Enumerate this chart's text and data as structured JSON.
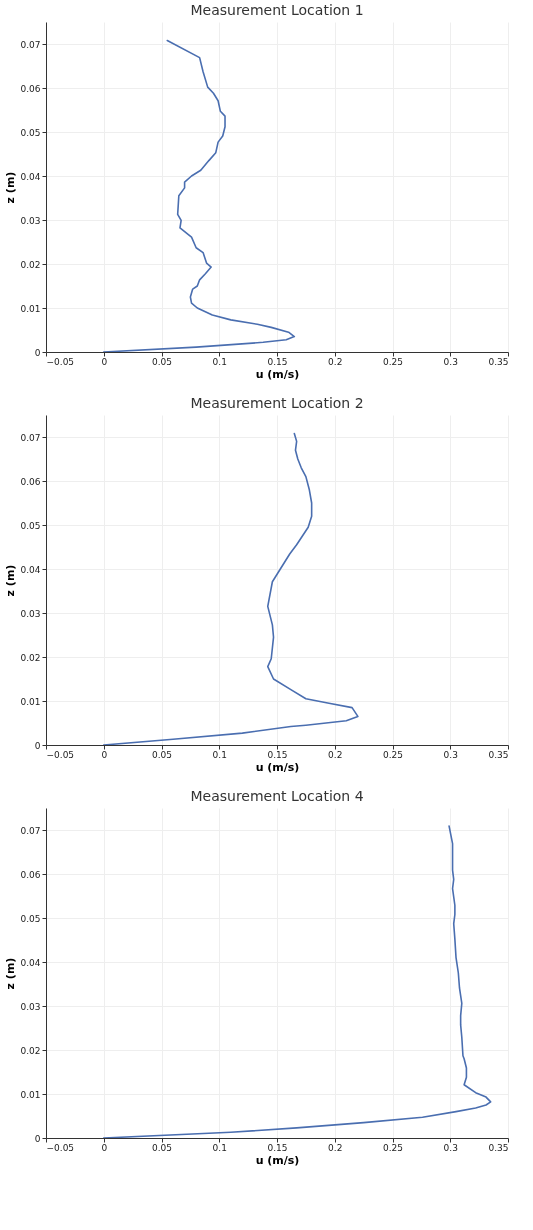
{
  "chart_data": [
    {
      "type": "line",
      "title": "Measurement Location 1",
      "xlabel": "u (m/s)",
      "ylabel": "z (m)",
      "xlim": [
        -0.05,
        0.35
      ],
      "ylim": [
        0,
        0.075
      ],
      "xticks": [
        -0.05,
        0,
        0.05,
        0.1,
        0.15,
        0.2,
        0.25,
        0.3,
        0.35
      ],
      "yticks": [
        0,
        0.01,
        0.02,
        0.03,
        0.04,
        0.05,
        0.06,
        0.07
      ],
      "grid": true,
      "series": [
        {
          "color": "#4a6eb0",
          "x": [
            0,
            0.08,
            0.138,
            0.158,
            0.165,
            0.16,
            0.145,
            0.133,
            0.11,
            0.094,
            0.081,
            0.076,
            0.075,
            0.077,
            0.081,
            0.083,
            0.088,
            0.093,
            0.089,
            0.086,
            0.08,
            0.076,
            0.066,
            0.067,
            0.064,
            0.065,
            0.07,
            0.07,
            0.076,
            0.084,
            0.091,
            0.097,
            0.099,
            0.103,
            0.105,
            0.105,
            0.101,
            0.099,
            0.095,
            0.09,
            0.086,
            0.083,
            0.055
          ],
          "values": [
            0,
            0.0011,
            0.0022,
            0.0028,
            0.0035,
            0.0045,
            0.0056,
            0.0063,
            0.0073,
            0.0084,
            0.01,
            0.0111,
            0.0125,
            0.0143,
            0.015,
            0.0164,
            0.0178,
            0.0193,
            0.0202,
            0.0226,
            0.0237,
            0.0261,
            0.0282,
            0.0299,
            0.0313,
            0.0355,
            0.0373,
            0.0386,
            0.04,
            0.0413,
            0.0435,
            0.0453,
            0.0477,
            0.0491,
            0.0512,
            0.0536,
            0.0547,
            0.0571,
            0.0588,
            0.0602,
            0.0637,
            0.0669,
            0.0708
          ]
        }
      ]
    },
    {
      "type": "line",
      "title": "Measurement Location 2",
      "xlabel": "u (m/s)",
      "ylabel": "z (m)",
      "xlim": [
        -0.05,
        0.35
      ],
      "ylim": [
        0,
        0.075
      ],
      "xticks": [
        -0.05,
        0,
        0.05,
        0.1,
        0.15,
        0.2,
        0.25,
        0.3,
        0.35
      ],
      "yticks": [
        0,
        0.01,
        0.02,
        0.03,
        0.04,
        0.05,
        0.06,
        0.07
      ],
      "grid": true,
      "series": [
        {
          "color": "#4a6eb0",
          "x": [
            0,
            0.06,
            0.12,
            0.162,
            0.175,
            0.21,
            0.22,
            0.215,
            0.195,
            0.175,
            0.162,
            0.147,
            0.142,
            0.145,
            0.147,
            0.146,
            0.142,
            0.146,
            0.161,
            0.167,
            0.172,
            0.177,
            0.18,
            0.18,
            0.178,
            0.175,
            0.171,
            0.168,
            0.166,
            0.167,
            0.165
          ],
          "values": [
            0,
            0.0013,
            0.0027,
            0.0042,
            0.0045,
            0.0055,
            0.0065,
            0.0085,
            0.0095,
            0.0105,
            0.0126,
            0.015,
            0.0178,
            0.0196,
            0.0245,
            0.0273,
            0.0315,
            0.0371,
            0.0434,
            0.0455,
            0.0475,
            0.0495,
            0.052,
            0.055,
            0.058,
            0.061,
            0.063,
            0.065,
            0.067,
            0.069,
            0.0708
          ]
        }
      ]
    },
    {
      "type": "line",
      "title": "Measurement Location 4",
      "xlabel": "u (m/s)",
      "ylabel": "z (m)",
      "xlim": [
        -0.05,
        0.35
      ],
      "ylim": [
        0,
        0.075
      ],
      "xticks": [
        -0.05,
        0,
        0.05,
        0.1,
        0.15,
        0.2,
        0.25,
        0.3,
        0.35
      ],
      "yticks": [
        0,
        0.01,
        0.02,
        0.03,
        0.04,
        0.05,
        0.06,
        0.07
      ],
      "grid": true,
      "series": [
        {
          "color": "#4a6eb0",
          "x": [
            0,
            0.11,
            0.167,
            0.225,
            0.276,
            0.305,
            0.322,
            0.331,
            0.335,
            0.331,
            0.322,
            0.312,
            0.314,
            0.314,
            0.312,
            0.311,
            0.31,
            0.309,
            0.309,
            0.31,
            0.308,
            0.307,
            0.305,
            0.304,
            0.303,
            0.304,
            0.304,
            0.302,
            0.303,
            0.302,
            0.302,
            0.302,
            0.299
          ],
          "values": [
            0,
            0.0013,
            0.0023,
            0.0035,
            0.0047,
            0.006,
            0.0068,
            0.0075,
            0.0082,
            0.0093,
            0.0103,
            0.0121,
            0.0138,
            0.0159,
            0.018,
            0.0187,
            0.0229,
            0.0257,
            0.0278,
            0.0306,
            0.0341,
            0.0375,
            0.041,
            0.0452,
            0.0487,
            0.0508,
            0.0529,
            0.0567,
            0.0588,
            0.0609,
            0.0627,
            0.0669,
            0.0709
          ]
        }
      ]
    }
  ]
}
